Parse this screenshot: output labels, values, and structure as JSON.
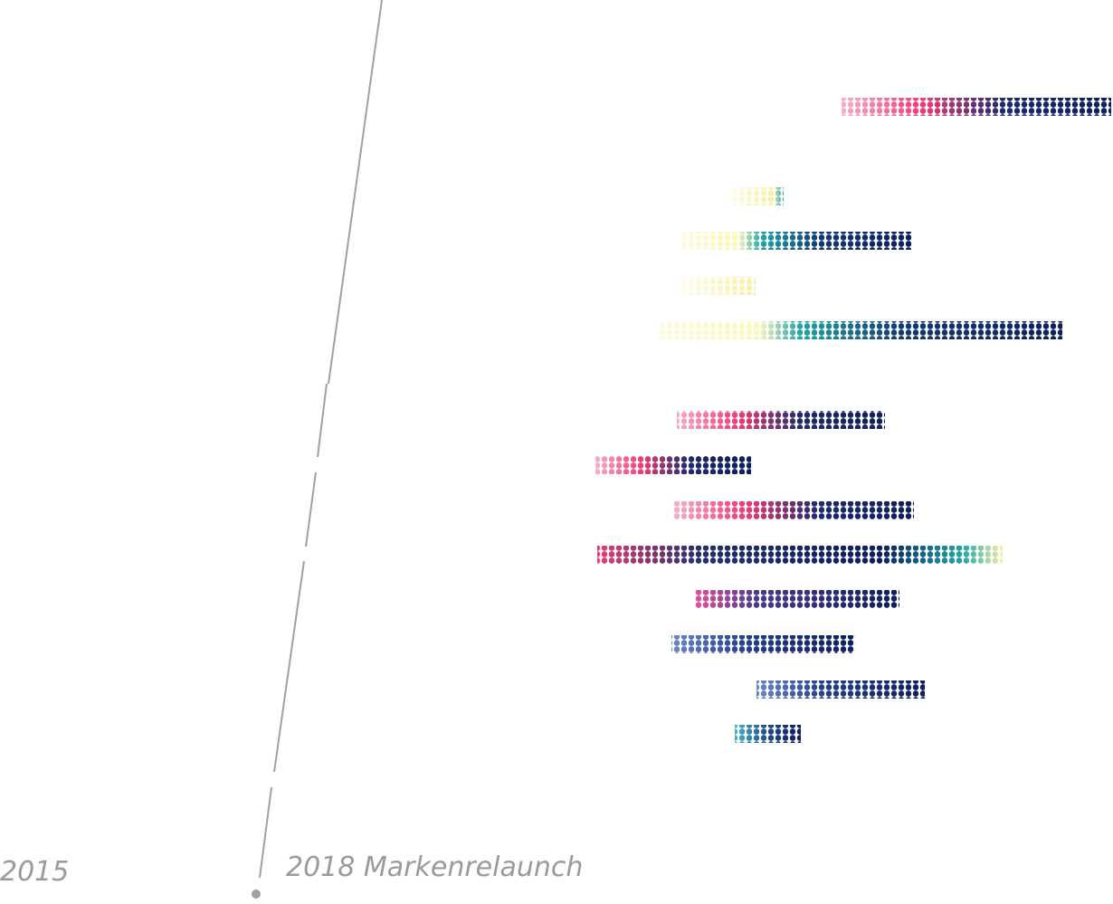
{
  "labels": {
    "start": "2015",
    "milestone": "2018 Markenrelaunch"
  }
}
